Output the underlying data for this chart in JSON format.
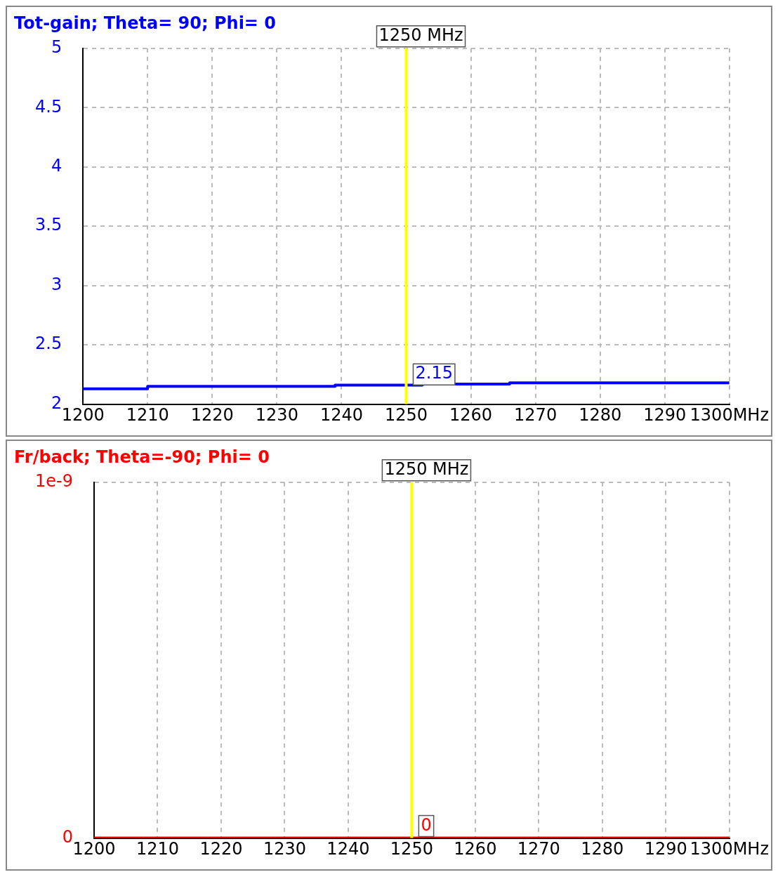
{
  "chart_data": [
    {
      "type": "step",
      "title": "Tot-gain; Theta= 90; Phi= 0",
      "x": [
        1200,
        1210,
        1239,
        1252.5,
        1266,
        1293,
        1300
      ],
      "series": [
        {
          "color": "#0000ff",
          "values": [
            2.12,
            2.13,
            2.15,
            2.16,
            2.17,
            2.18,
            2.18
          ]
        }
      ],
      "xlim": [
        1200,
        1300
      ],
      "xticks": [
        1200,
        1210,
        1220,
        1230,
        1240,
        1250,
        1260,
        1270,
        1280,
        1290,
        {
          "value": 1300,
          "label": "1300MHz"
        }
      ],
      "ylim": [
        2,
        5
      ],
      "yticks": [
        2,
        2.5,
        3,
        3.5,
        4,
        4.5,
        5
      ],
      "grid": true,
      "legend": false,
      "marker": "none",
      "line_style": "solid",
      "ref_lines": [
        {
          "axis": "x",
          "value": 1250,
          "label": "1250 MHz",
          "color": "#ffff00"
        }
      ],
      "annotations": [
        {
          "text": "2.15",
          "x": 1250,
          "y": 2.15
        }
      ]
    },
    {
      "type": "step",
      "title": "Fr/back; Theta=-90; Phi= 0",
      "x": [
        1200,
        1300
      ],
      "series": [
        {
          "color": "#ff0000",
          "values": [
            0,
            0
          ]
        }
      ],
      "xlim": [
        1200,
        1300
      ],
      "xticks": [
        1200,
        1210,
        1220,
        1230,
        1240,
        1250,
        1260,
        1270,
        1280,
        1290,
        {
          "value": 1300,
          "label": "1300MHz"
        }
      ],
      "ylim": [
        0,
        1e-09
      ],
      "yticks": [
        0,
        {
          "value": 1e-09,
          "label": "1e-9"
        }
      ],
      "grid": true,
      "legend": false,
      "marker": "none",
      "line_style": "solid",
      "ref_lines": [
        {
          "axis": "x",
          "value": 1250,
          "label": "1250 MHz",
          "color": "#ffff00"
        }
      ],
      "annotations": [
        {
          "text": "0",
          "x": 1250,
          "y": 0
        }
      ]
    }
  ]
}
